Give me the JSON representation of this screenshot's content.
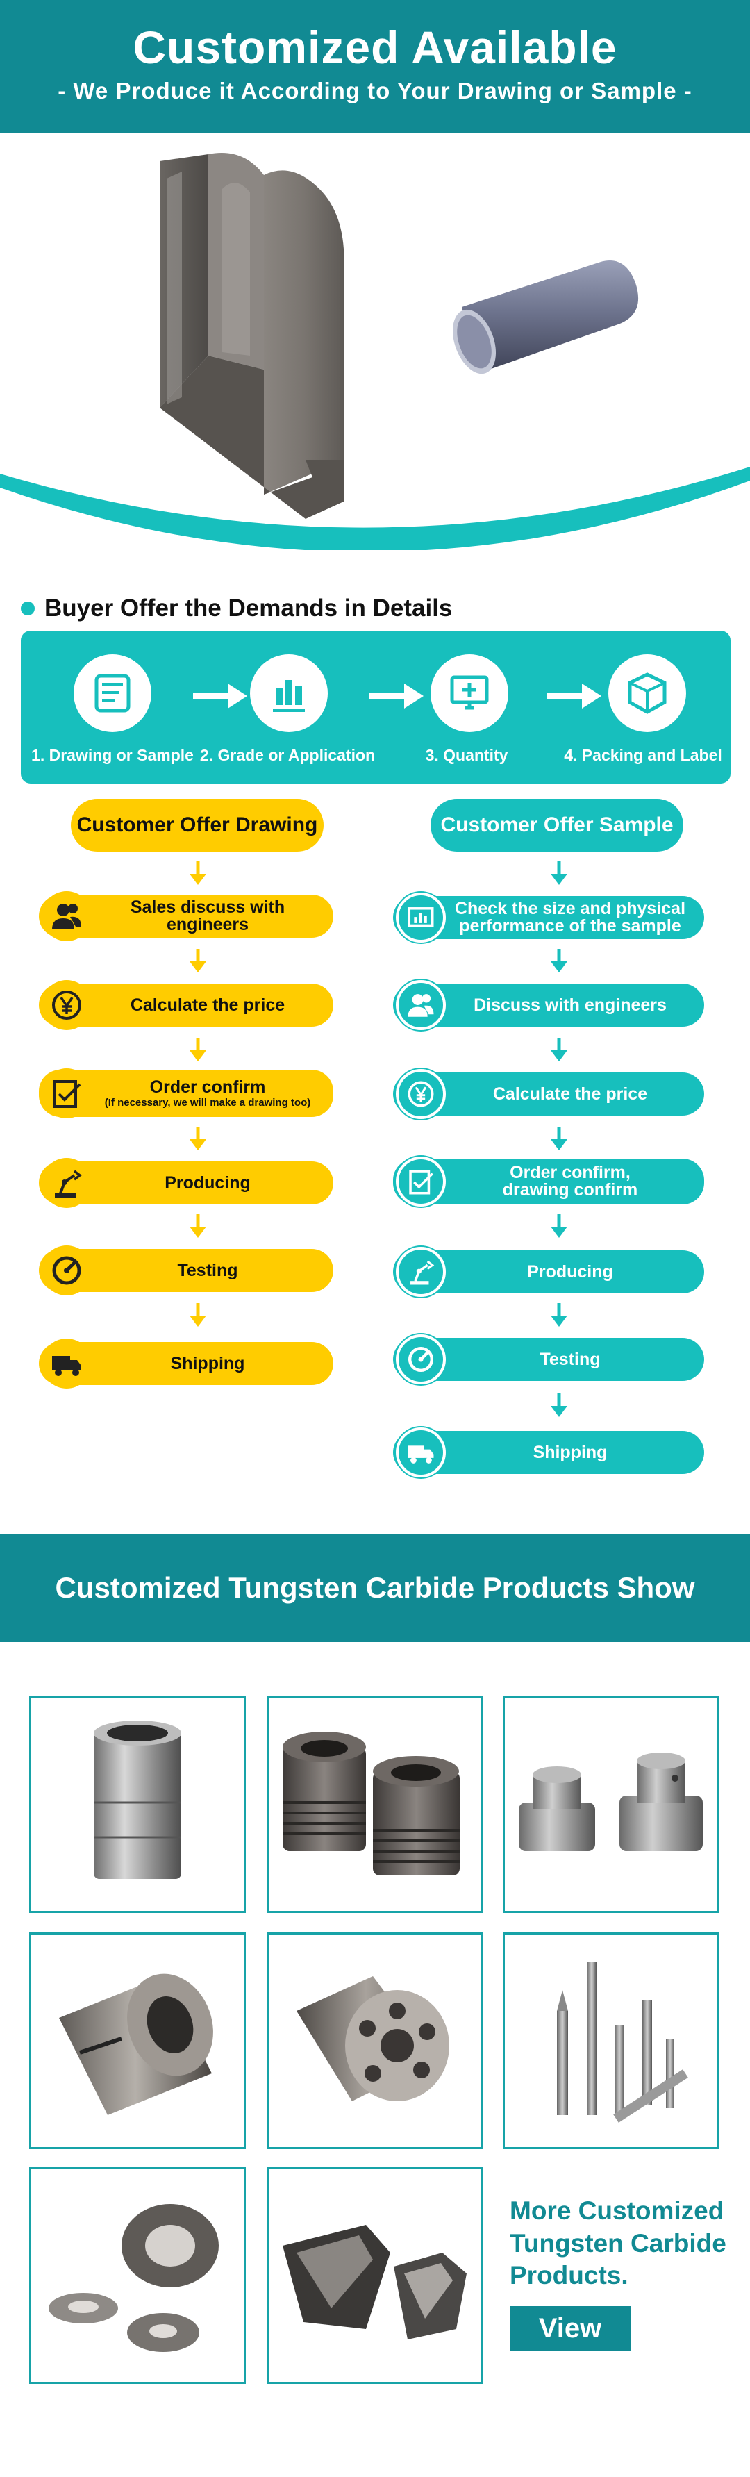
{
  "header": {
    "title": "Customized Available",
    "subtitle": "- We Produce it According to Your Drawing or Sample -"
  },
  "demands": {
    "heading": "Buyer Offer the Demands in Details",
    "steps": [
      {
        "label": "1. Drawing or Sample",
        "icon": "blueprint-icon"
      },
      {
        "label": "2. Grade or Application",
        "icon": "bar-chart-icon"
      },
      {
        "label": "3. Quantity",
        "icon": "monitor-plus-icon"
      },
      {
        "label": "4. Packing and Label",
        "icon": "box-icon"
      }
    ]
  },
  "drawing_flow": {
    "header": "Customer Offer Drawing",
    "steps": [
      {
        "label": "Sales discuss with engineers",
        "note": "",
        "icon": "people-icon"
      },
      {
        "label": "Calculate the price",
        "note": "",
        "icon": "yen-coin-icon"
      },
      {
        "label": "Order confirm",
        "note": "(If necessary, we will make a drawing too)",
        "icon": "document-check-icon"
      },
      {
        "label": "Producing",
        "note": "",
        "icon": "robot-arm-icon"
      },
      {
        "label": "Testing",
        "note": "",
        "icon": "gauge-icon"
      },
      {
        "label": "Shipping",
        "note": "",
        "icon": "truck-icon"
      }
    ]
  },
  "sample_flow": {
    "header": "Customer Offer Sample",
    "steps": [
      {
        "line1": "Check the size and physical",
        "line2": "performance of the sample",
        "icon": "chart-screen-icon"
      },
      {
        "line1": "Discuss with engineers",
        "line2": "",
        "icon": "people-icon"
      },
      {
        "line1": "Calculate the price",
        "line2": "",
        "icon": "yen-coin-icon"
      },
      {
        "line1": "Order confirm,",
        "line2": "drawing confirm",
        "icon": "document-check-icon"
      },
      {
        "line1": "Producing",
        "line2": "",
        "icon": "robot-arm-icon"
      },
      {
        "line1": "Testing",
        "line2": "",
        "icon": "gauge-icon"
      },
      {
        "line1": "Shipping",
        "line2": "",
        "icon": "truck-icon"
      }
    ]
  },
  "products": {
    "banner": "Customized Tungsten Carbide Products Show",
    "more_text": "More Customized Tungsten Carbide Products.",
    "view_label": "View"
  },
  "colors": {
    "brand_dark": "#118a93",
    "teal": "#17bfbd",
    "yellow": "#ffcc00"
  }
}
